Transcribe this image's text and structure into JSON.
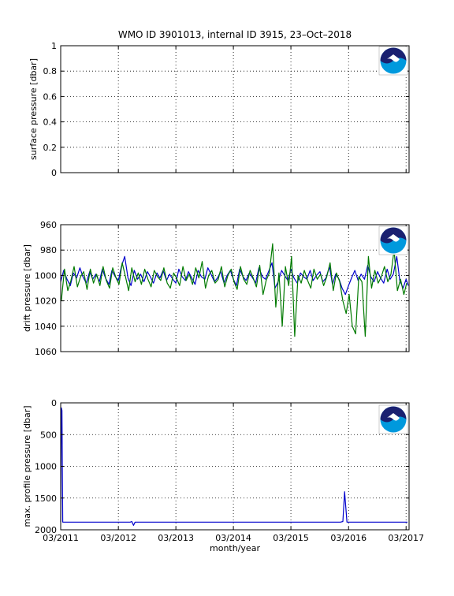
{
  "figure": {
    "title": "WMO ID 3901013, internal ID 3915, 23–Oct–2018",
    "logo_text": "NOAA",
    "logo_icon": "noaa-logo-icon"
  },
  "colors": {
    "series_blue": "#0000cc",
    "series_green": "#007a00",
    "axis": "#000000",
    "grid": "#000000",
    "logo_blue": "#0099dd",
    "logo_navy": "#1a2070"
  },
  "chart_data": [
    {
      "id": "surface",
      "type": "line",
      "title": "",
      "xlabel": "",
      "ylabel": "surface pressure [dbar]",
      "xlim": [
        "2011-03-01",
        "2017-03-20"
      ],
      "ylim": [
        0,
        1
      ],
      "yticks": [
        0,
        0.2,
        0.4,
        0.6,
        0.8,
        1
      ],
      "ytick_labels": [
        "0",
        "0.2",
        "0.4",
        "0.6",
        "0.8",
        "1"
      ],
      "y_reversed": false,
      "x_tick_labels_shown": false,
      "grid": "dotted",
      "series": []
    },
    {
      "id": "drift",
      "type": "line",
      "title": "",
      "xlabel": "",
      "ylabel": "drift pressure [dbar]",
      "xlim": [
        "2011-03-01",
        "2017-03-20"
      ],
      "ylim": [
        960,
        1060
      ],
      "yticks": [
        960,
        980,
        1000,
        1020,
        1040,
        1060
      ],
      "ytick_labels": [
        "960",
        "980",
        "1000",
        "1020",
        "1040",
        "1060"
      ],
      "y_reversed": true,
      "x_tick_labels_shown": false,
      "grid": "dotted",
      "series": [
        {
          "color": "#0000cc",
          "x": [
            "2011-03-01",
            "2011-03-20",
            "2011-04-10",
            "2011-05-01",
            "2011-05-20",
            "2011-06-10",
            "2011-07-01",
            "2011-07-20",
            "2011-08-10",
            "2011-09-01",
            "2011-09-20",
            "2011-10-10",
            "2011-11-01",
            "2011-11-20",
            "2011-12-10",
            "2012-01-01",
            "2012-01-20",
            "2012-02-10",
            "2012-03-01",
            "2012-03-20",
            "2012-04-10",
            "2012-05-01",
            "2012-05-20",
            "2012-06-10",
            "2012-07-01",
            "2012-07-20",
            "2012-08-10",
            "2012-09-01",
            "2012-09-20",
            "2012-10-10",
            "2012-11-01",
            "2012-11-20",
            "2012-12-10",
            "2013-01-01",
            "2013-01-20",
            "2013-02-10",
            "2013-03-01",
            "2013-03-20",
            "2013-04-10",
            "2013-05-01",
            "2013-05-20",
            "2013-06-10",
            "2013-07-01",
            "2013-07-20",
            "2013-08-10",
            "2013-09-01",
            "2013-09-20",
            "2013-10-10",
            "2013-11-01",
            "2013-11-20",
            "2013-12-10",
            "2014-01-01",
            "2014-01-20",
            "2014-02-10",
            "2014-03-01",
            "2014-03-20",
            "2014-04-10",
            "2014-05-01",
            "2014-05-20",
            "2014-06-10",
            "2014-07-01",
            "2014-07-20",
            "2014-08-10",
            "2014-09-01",
            "2014-09-20",
            "2014-10-10",
            "2014-11-01",
            "2014-11-20",
            "2014-12-10",
            "2015-01-01",
            "2015-01-20",
            "2015-02-10",
            "2015-03-01",
            "2015-03-20",
            "2015-04-10",
            "2015-05-01",
            "2015-05-20",
            "2015-06-10",
            "2015-07-01",
            "2015-07-20",
            "2015-08-10",
            "2015-09-01",
            "2015-09-20",
            "2015-10-10",
            "2015-11-01",
            "2015-11-20",
            "2015-12-10",
            "2016-01-01",
            "2016-01-20",
            "2016-02-10",
            "2016-03-01",
            "2016-03-20",
            "2016-04-10",
            "2016-05-01",
            "2016-05-20",
            "2016-06-10",
            "2016-07-01",
            "2016-07-20",
            "2016-08-10",
            "2016-09-01",
            "2016-09-20",
            "2016-10-10",
            "2016-11-01",
            "2016-11-20",
            "2016-12-10",
            "2017-01-01",
            "2017-01-20",
            "2017-02-10",
            "2017-03-01",
            "2017-03-15"
          ],
          "y": [
            1005,
            996,
            1003,
            1008,
            998,
            1002,
            994,
            1001,
            1006,
            997,
            1003,
            999,
            1005,
            995,
            1002,
            1007,
            996,
            1001,
            1004,
            993,
            985,
            1002,
            1008,
            996,
            1003,
            999,
            1005,
            997,
            1001,
            1006,
            998,
            1002,
            996,
            1004,
            999,
            1003,
            1006,
            995,
            1001,
            1004,
            997,
            1002,
            1007,
            996,
            1001,
            1003,
            994,
            999,
            1005,
            1002,
            997,
            1006,
            1000,
            996,
            1003,
            1008,
            995,
            1001,
            1004,
            998,
            1002,
            1006,
            994,
            1001,
            1003,
            997,
            990,
            1010,
            1005,
            996,
            1000,
            1004,
            995,
            1002,
            1006,
            998,
            1001,
            1003,
            996,
            1004,
            1000,
            997,
            1005,
            1002,
            993,
            1007,
            999,
            1003,
            1010,
            1015,
            1008,
            1002,
            996,
            1004,
            999,
            1003,
            992,
            1001,
            1005,
            997,
            1002,
            1006,
            995,
            1003,
            999,
            985,
            1004,
            1010,
            1003,
            1008
          ]
        },
        {
          "color": "#007a00",
          "x": [
            "2011-03-05",
            "2011-03-25",
            "2011-04-15",
            "2011-05-05",
            "2011-05-25",
            "2011-06-15",
            "2011-07-05",
            "2011-07-25",
            "2011-08-15",
            "2011-09-05",
            "2011-09-25",
            "2011-10-15",
            "2011-11-05",
            "2011-11-25",
            "2011-12-15",
            "2012-01-05",
            "2012-01-25",
            "2012-02-15",
            "2012-03-05",
            "2012-03-25",
            "2012-04-15",
            "2012-05-05",
            "2012-05-25",
            "2012-06-15",
            "2012-07-05",
            "2012-07-25",
            "2012-08-15",
            "2012-09-05",
            "2012-09-25",
            "2012-10-15",
            "2012-11-05",
            "2012-11-25",
            "2012-12-15",
            "2013-01-05",
            "2013-01-25",
            "2013-02-15",
            "2013-03-05",
            "2013-03-25",
            "2013-04-15",
            "2013-05-05",
            "2013-05-25",
            "2013-06-15",
            "2013-07-05",
            "2013-07-25",
            "2013-08-15",
            "2013-09-05",
            "2013-09-25",
            "2013-10-15",
            "2013-11-05",
            "2013-11-25",
            "2013-12-15",
            "2014-01-05",
            "2014-01-25",
            "2014-02-15",
            "2014-03-05",
            "2014-03-25",
            "2014-04-15",
            "2014-05-05",
            "2014-05-25",
            "2014-06-15",
            "2014-07-05",
            "2014-07-25",
            "2014-08-15",
            "2014-09-05",
            "2014-09-25",
            "2014-10-15",
            "2014-11-05",
            "2014-11-25",
            "2014-12-15",
            "2015-01-05",
            "2015-01-25",
            "2015-02-15",
            "2015-03-05",
            "2015-03-25",
            "2015-04-15",
            "2015-05-05",
            "2015-05-25",
            "2015-06-15",
            "2015-07-05",
            "2015-07-25",
            "2015-08-15",
            "2015-09-05",
            "2015-09-25",
            "2015-10-15",
            "2015-11-05",
            "2015-11-25",
            "2015-12-15",
            "2016-01-05",
            "2016-01-25",
            "2016-02-15",
            "2016-03-05",
            "2016-03-25",
            "2016-04-15",
            "2016-05-05",
            "2016-05-25",
            "2016-06-15",
            "2016-07-05",
            "2016-07-25",
            "2016-08-15",
            "2016-09-05",
            "2016-09-25",
            "2016-10-15",
            "2016-11-05",
            "2016-11-25",
            "2016-12-15",
            "2017-01-05",
            "2017-01-25",
            "2017-02-15",
            "2017-03-05"
          ],
          "y": [
            1020,
            995,
            1012,
            1004,
            993,
            1009,
            1001,
            997,
            1011,
            995,
            1006,
            999,
            1008,
            993,
            1004,
            1010,
            994,
            1002,
            1007,
            990,
            1001,
            1012,
            994,
            1005,
            998,
            1007,
            995,
            1003,
            1009,
            996,
            1001,
            1004,
            994,
            1006,
            1010,
            998,
            1002,
            1008,
            993,
            1004,
            999,
            1007,
            994,
            1002,
            989,
            1010,
            1000,
            996,
            1006,
            1003,
            993,
            1009,
            1000,
            995,
            1005,
            1011,
            993,
            1003,
            1007,
            996,
            1002,
            1009,
            992,
            1015,
            1004,
            998,
            975,
            1025,
            998,
            1040,
            993,
            1008,
            985,
            1048,
            1000,
            1006,
            996,
            1004,
            1010,
            995,
            1003,
            999,
            1008,
            1001,
            990,
            1012,
            998,
            1005,
            1020,
            1030,
            1015,
            1040,
            1046,
            1001,
            1005,
            1048,
            985,
            1010,
            996,
            1006,
            1001,
            993,
            1005,
            999,
            980,
            1012,
            1003,
            1015,
            1006
          ]
        }
      ]
    },
    {
      "id": "profile",
      "type": "line",
      "title": "",
      "xlabel": "month/year",
      "ylabel": "max. profile pressure [dbar]",
      "xlim": [
        "2011-03-01",
        "2017-03-20"
      ],
      "ylim": [
        0,
        2000
      ],
      "yticks": [
        0,
        500,
        1000,
        1500,
        2000
      ],
      "ytick_labels": [
        "0",
        "500",
        "1000",
        "1500",
        "2000"
      ],
      "y_reversed": true,
      "x_tick_labels_shown": true,
      "xtick_labels": [
        "03/2011",
        "03/2012",
        "03/2013",
        "03/2014",
        "03/2015",
        "03/2016",
        "03/2017"
      ],
      "grid": "dotted",
      "series": [
        {
          "color": "#0000cc",
          "x": [
            "2011-03-01",
            "2011-03-05",
            "2011-03-09",
            "2011-03-14",
            "2011-04-01",
            "2012-05-15",
            "2012-05-25",
            "2012-06-05",
            "2012-06-15",
            "2016-01-10",
            "2016-01-25",
            "2016-02-05",
            "2016-02-20",
            "2017-01-10",
            "2017-03-10"
          ],
          "y": [
            1880,
            80,
            120,
            1880,
            1880,
            1880,
            1870,
            1930,
            1880,
            1880,
            1870,
            1400,
            1880,
            1880,
            1880
          ]
        }
      ]
    }
  ]
}
